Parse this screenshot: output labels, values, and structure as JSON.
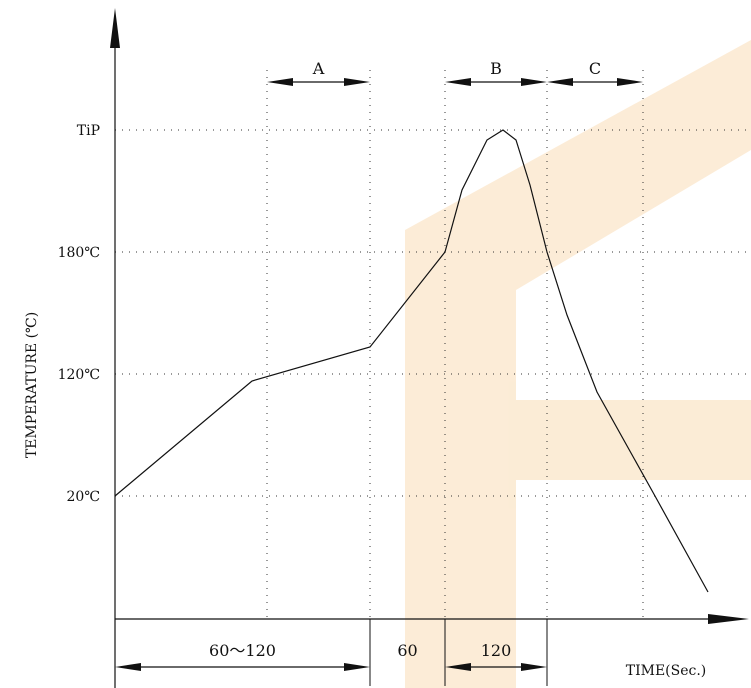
{
  "colors": {
    "ink": "#111111",
    "grid": "#333333",
    "watermark": "#fbe9d0"
  },
  "chart_data": {
    "type": "line",
    "title": "",
    "ylabel": "TEMPERATURE (℃)",
    "xlabel": "TIME(Sec.)",
    "y_ticks": [
      {
        "label": "TiP",
        "value": "tip"
      },
      {
        "label": "180℃",
        "value": 180
      },
      {
        "label": "120℃",
        "value": 120
      },
      {
        "label": "20℃",
        "value": 20
      }
    ],
    "zones": [
      {
        "label": "A",
        "from": "end_preheat_start",
        "to": "end_preheat"
      },
      {
        "label": "B",
        "from": "reach_180",
        "to": "leave_180"
      },
      {
        "label": "C",
        "from": "leave_180",
        "to": "cool_end"
      }
    ],
    "time_segments": [
      {
        "label": "60～120"
      },
      {
        "label": "60"
      },
      {
        "label": "120"
      }
    ],
    "series": [
      {
        "values": [
          20,
          120,
          150,
          180,
          210,
          240,
          245,
          240,
          210,
          180,
          150,
          120,
          20,
          -60
        ]
      }
    ]
  }
}
